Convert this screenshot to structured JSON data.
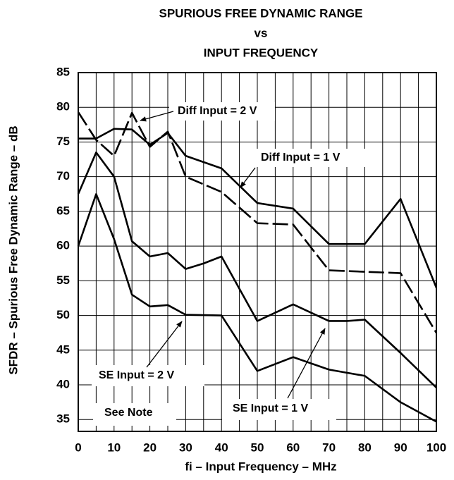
{
  "chart_data": {
    "type": "line",
    "title": [
      "SPURIOUS FREE DYNAMIC RANGE",
      "vs",
      "INPUT FREQUENCY"
    ],
    "xlabel": "fi – Input Frequency – MHz",
    "ylabel": "SFDR – Spurious Free Dynamic Range – dB",
    "xlim": [
      0,
      100
    ],
    "xticks": [
      0,
      10,
      20,
      30,
      40,
      50,
      60,
      70,
      80,
      90,
      100
    ],
    "xgrid": [
      5,
      15,
      25,
      35,
      45,
      55,
      65,
      75,
      85,
      95
    ],
    "ylim": [
      33.3,
      85
    ],
    "yticks": [
      35,
      40,
      45,
      50,
      55,
      60,
      65,
      70,
      75,
      80,
      85
    ],
    "grid": true,
    "annotations": [
      "Diff Input = 2 V",
      "Diff Input = 1 V",
      "SE Input = 2 V",
      "SE Input = 1 V",
      "See Note"
    ],
    "series": [
      {
        "name": "Diff Input = 2 V",
        "color": "#000000",
        "style": "dashed",
        "x": [
          0,
          5,
          10,
          15,
          20,
          25,
          30,
          40,
          50,
          60,
          70,
          80,
          90,
          100
        ],
        "values": [
          79.3,
          75.3,
          73,
          79.2,
          74.3,
          76.5,
          70,
          67.8,
          63.3,
          63.1,
          56.5,
          56.3,
          56.1,
          47.5
        ]
      },
      {
        "name": "Diff Input = 1 V",
        "color": "#000000",
        "style": "solid",
        "x": [
          0,
          5,
          10,
          15,
          20,
          25,
          30,
          40,
          50,
          60,
          70,
          80,
          90,
          100
        ],
        "values": [
          75.5,
          75.5,
          76.9,
          76.8,
          74.6,
          76.3,
          73,
          71.2,
          66.2,
          65.4,
          60.3,
          60.3,
          66.8,
          54
        ]
      },
      {
        "name": "SE Input = 1 V",
        "color": "#000000",
        "style": "solid",
        "x": [
          0,
          5,
          10,
          15,
          20,
          25,
          30,
          35,
          40,
          50,
          60,
          70,
          75,
          80,
          90,
          100
        ],
        "values": [
          67.5,
          73.5,
          70,
          60.7,
          58.5,
          59,
          56.7,
          57.5,
          58.5,
          49.2,
          51.6,
          49.2,
          49.2,
          49.4,
          44.6,
          39.6
        ]
      },
      {
        "name": "SE Input = 2 V",
        "color": "#000000",
        "style": "solid",
        "x": [
          0,
          5,
          10,
          15,
          20,
          25,
          30,
          40,
          50,
          60,
          70,
          80,
          90,
          100
        ],
        "values": [
          60,
          67.5,
          61,
          53,
          51.3,
          51.5,
          50.1,
          50,
          42,
          44,
          42.2,
          41.3,
          37.5,
          34.7
        ]
      }
    ]
  }
}
